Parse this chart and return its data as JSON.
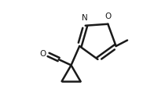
{
  "bg_color": "#ffffff",
  "line_color": "#1a1a1a",
  "line_width": 1.8,
  "figsize": [
    2.1,
    1.28
  ],
  "dpi": 100,
  "xlim": [
    0.0,
    1.0
  ],
  "ylim": [
    0.0,
    1.0
  ]
}
